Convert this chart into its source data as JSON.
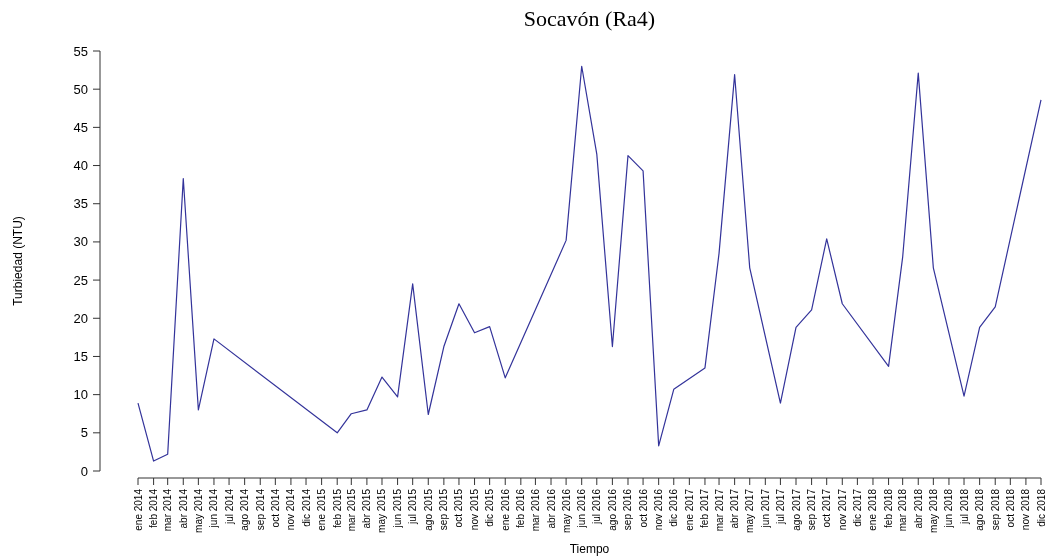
{
  "chart_data": {
    "type": "line",
    "title": "Socavón (Ra4)",
    "xlabel": "Tiempo",
    "ylabel": "Turbiedad (NTU)",
    "xlim": [
      "2014-01",
      "2018-12"
    ],
    "ylim": [
      0,
      55
    ],
    "yticks": [
      0,
      5,
      10,
      15,
      20,
      25,
      30,
      35,
      40,
      45,
      50,
      55
    ],
    "xticks": [
      {
        "value": "2014-01",
        "label": "ene 2014"
      },
      {
        "value": "2014-02",
        "label": "feb 2014"
      },
      {
        "value": "2014-03",
        "label": "mar 2014"
      },
      {
        "value": "2014-04",
        "label": "abr 2014"
      },
      {
        "value": "2014-05",
        "label": "may 2014"
      },
      {
        "value": "2014-06",
        "label": "jun 2014"
      },
      {
        "value": "2014-07",
        "label": "jul 2014"
      },
      {
        "value": "2014-08",
        "label": "ago 2014"
      },
      {
        "value": "2014-09",
        "label": "sep 2014"
      },
      {
        "value": "2014-10",
        "label": "oct 2014"
      },
      {
        "value": "2014-11",
        "label": "nov 2014"
      },
      {
        "value": "2014-12",
        "label": "dic 2014"
      },
      {
        "value": "2015-01",
        "label": "ene 2015"
      },
      {
        "value": "2015-02",
        "label": "feb 2015"
      },
      {
        "value": "2015-03",
        "label": "mar 2015"
      },
      {
        "value": "2015-04",
        "label": "abr 2015"
      },
      {
        "value": "2015-05",
        "label": "may 2015"
      },
      {
        "value": "2015-06",
        "label": "jun 2015"
      },
      {
        "value": "2015-07",
        "label": "jul 2015"
      },
      {
        "value": "2015-08",
        "label": "ago 2015"
      },
      {
        "value": "2015-09",
        "label": "sep 2015"
      },
      {
        "value": "2015-10",
        "label": "oct 2015"
      },
      {
        "value": "2015-11",
        "label": "nov 2015"
      },
      {
        "value": "2015-12",
        "label": "dic 2015"
      },
      {
        "value": "2016-01",
        "label": "ene 2016"
      },
      {
        "value": "2016-02",
        "label": "feb 2016"
      },
      {
        "value": "2016-03",
        "label": "mar 2016"
      },
      {
        "value": "2016-04",
        "label": "abr 2016"
      },
      {
        "value": "2016-05",
        "label": "may 2016"
      },
      {
        "value": "2016-06",
        "label": "jun 2016"
      },
      {
        "value": "2016-07",
        "label": "jul 2016"
      },
      {
        "value": "2016-08",
        "label": "ago 2016"
      },
      {
        "value": "2016-09",
        "label": "sep 2016"
      },
      {
        "value": "2016-10",
        "label": "oct 2016"
      },
      {
        "value": "2016-11",
        "label": "nov 2016"
      },
      {
        "value": "2016-12",
        "label": "dic 2016"
      },
      {
        "value": "2017-01",
        "label": "ene 2017"
      },
      {
        "value": "2017-02",
        "label": "feb 2017"
      },
      {
        "value": "2017-03",
        "label": "mar 2017"
      },
      {
        "value": "2017-04",
        "label": "abr 2017"
      },
      {
        "value": "2017-05",
        "label": "may 2017"
      },
      {
        "value": "2017-06",
        "label": "jun 2017"
      },
      {
        "value": "2017-07",
        "label": "jul 2017"
      },
      {
        "value": "2017-08",
        "label": "ago 2017"
      },
      {
        "value": "2017-09",
        "label": "sep 2017"
      },
      {
        "value": "2017-10",
        "label": "oct 2017"
      },
      {
        "value": "2017-11",
        "label": "nov 2017"
      },
      {
        "value": "2017-12",
        "label": "dic 2017"
      },
      {
        "value": "2018-01",
        "label": "ene 2018"
      },
      {
        "value": "2018-02",
        "label": "feb 2018"
      },
      {
        "value": "2018-03",
        "label": "mar 2018"
      },
      {
        "value": "2018-04",
        "label": "abr 2018"
      },
      {
        "value": "2018-05",
        "label": "may 2018"
      },
      {
        "value": "2018-06",
        "label": "jun 2018"
      },
      {
        "value": "2018-07",
        "label": "jul 2018"
      },
      {
        "value": "2018-08",
        "label": "ago 2018"
      },
      {
        "value": "2018-09",
        "label": "sep 2018"
      },
      {
        "value": "2018-10",
        "label": "oct 2018"
      },
      {
        "value": "2018-11",
        "label": "nov 2018"
      },
      {
        "value": "2018-12",
        "label": "dic 2018"
      }
    ],
    "x": [
      "2014-01",
      "2014-02",
      "2014-03",
      "2014-04",
      "2014-05",
      "2014-06",
      "2015-02",
      "2015-03",
      "2015-04",
      "2015-05",
      "2015-06",
      "2015-07",
      "2015-08",
      "2015-09",
      "2015-10",
      "2015-11",
      "2015-12",
      "2016-01",
      "2016-05",
      "2016-06",
      "2016-07",
      "2016-08",
      "2016-09",
      "2016-10",
      "2016-11",
      "2016-12",
      "2017-02",
      "2017-03",
      "2017-04",
      "2017-05",
      "2017-07",
      "2017-08",
      "2017-09",
      "2017-10",
      "2017-11",
      "2018-02",
      "2018-03",
      "2018-04",
      "2018-05",
      "2018-07",
      "2018-08",
      "2018-09",
      "2018-12"
    ],
    "series": [
      {
        "color": "#33339a",
        "values": [
          8.9,
          1.3,
          2.2,
          38.3,
          8.0,
          17.3,
          5.0,
          7.5,
          8.0,
          12.3,
          9.7,
          24.5,
          7.4,
          16.3,
          21.9,
          18.1,
          18.9,
          12.2,
          30.2,
          53.0,
          41.5,
          16.3,
          41.3,
          39.3,
          3.3,
          10.7,
          13.5,
          28.5,
          51.9,
          26.6,
          8.9,
          18.8,
          21.1,
          30.4,
          21.9,
          13.7,
          28.0,
          52.1,
          26.6,
          9.8,
          18.8,
          21.5,
          48.6
        ]
      }
    ],
    "grid": false,
    "marker": "none",
    "line_style": "solid"
  }
}
